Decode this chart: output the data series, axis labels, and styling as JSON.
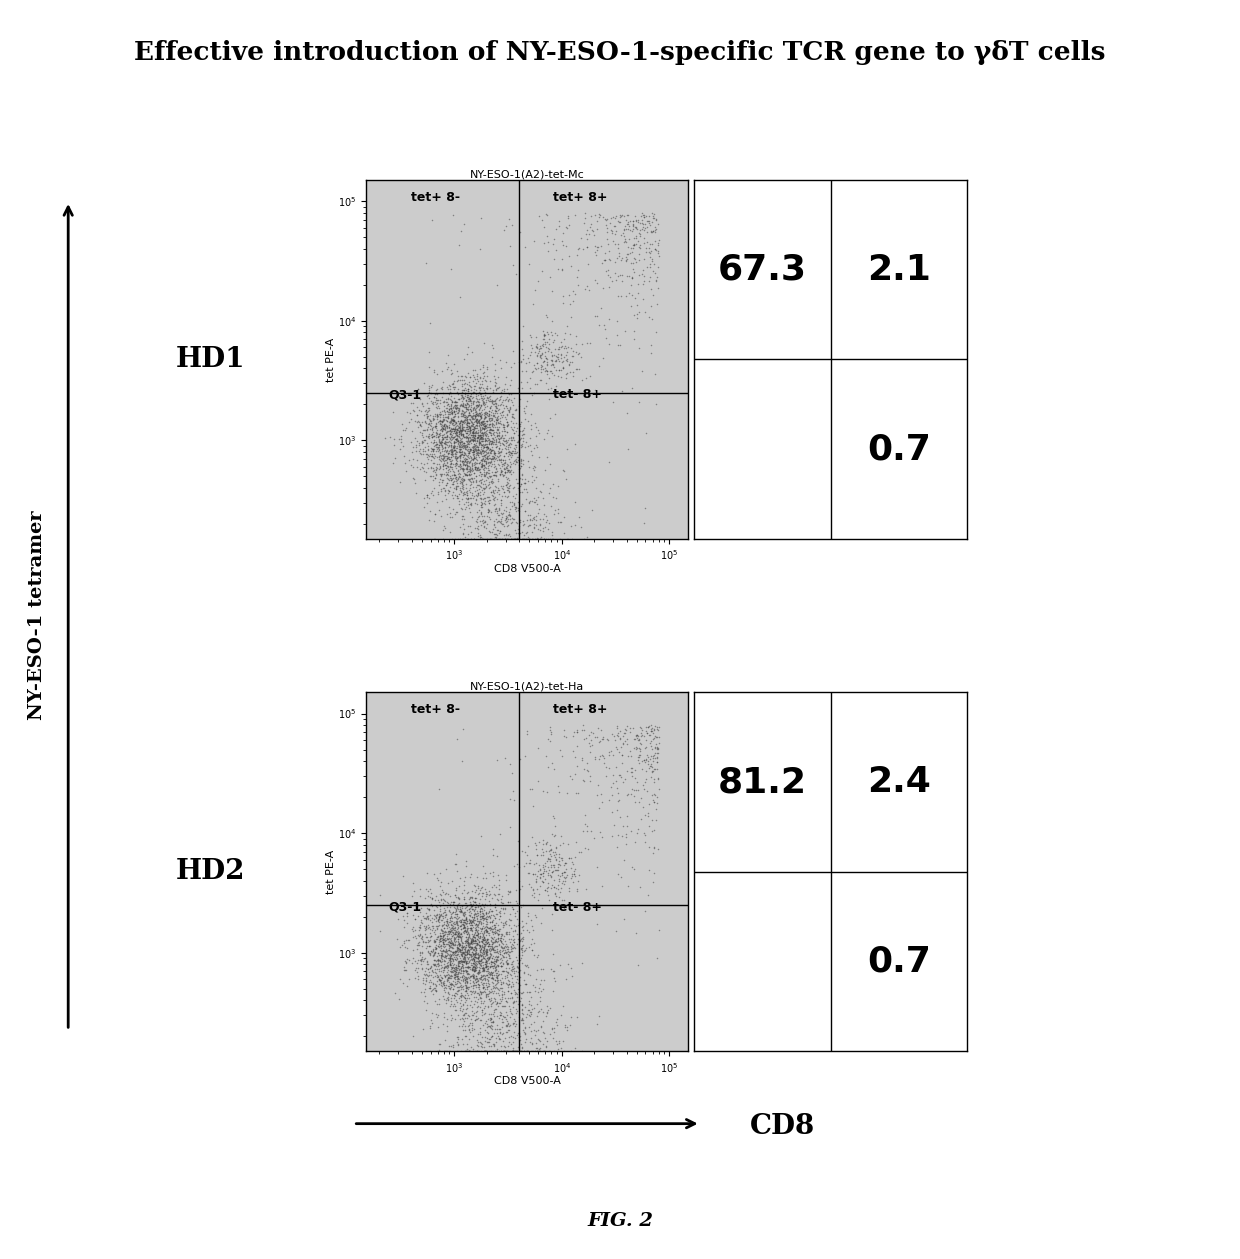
{
  "title": "Effective introduction of NY-ESO-1-specific TCR gene to γδT cells",
  "fig_label": "FIG. 2",
  "hd1_label": "HD1",
  "hd2_label": "HD2",
  "cd8_label": "CD8",
  "ny_eso_label": "NY-ESO-1 tetramer",
  "plot1_title": "NY-ESO-1(A2)-tet-Mc",
  "plot2_title": "NY-ESO-1(A2)-tet-Ha",
  "plot1_xlabel": "CD8 V500-A",
  "plot2_xlabel": "CD8 V500-A",
  "plot1_ylabel": "tet PE-A",
  "plot2_ylabel": "tet PE-A",
  "hd1_values": {
    "top_left": "67.3",
    "top_right": "2.1",
    "bottom_right": "0.7"
  },
  "hd2_values": {
    "top_left": "81.2",
    "top_right": "2.4",
    "bottom_right": "0.7"
  },
  "quad_labels": {
    "tl": "tet+ 8-",
    "tr": "tet+ 8+",
    "bl": "Q3-1",
    "br": "tet- 8+"
  },
  "bg_color": "#ffffff",
  "text_color": "#000000",
  "plot_bg": "#cccccc",
  "scatter_color": "#444444",
  "title_fontsize": 19,
  "label_fontsize": 15,
  "value_fontsize": 26,
  "quad_label_fontsize": 9
}
